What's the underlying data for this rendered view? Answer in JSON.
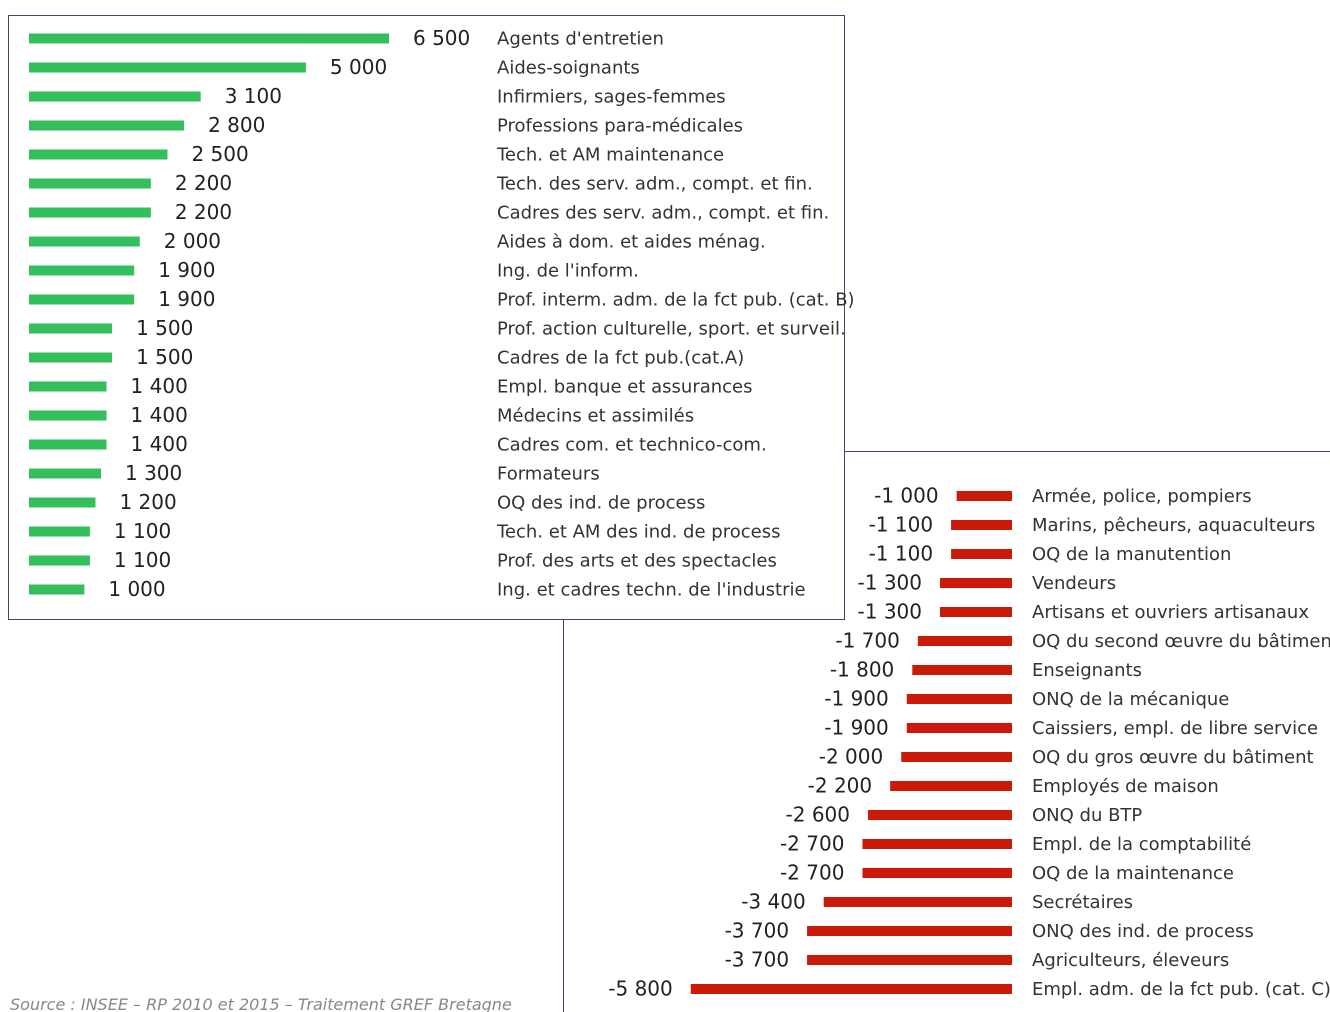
{
  "chart_data": [
    {
      "type": "bar",
      "orientation": "horizontal",
      "color": "#33bf5c",
      "categories": [
        "Agents d'entretien",
        "Aides-soignants",
        "Infirmiers, sages-femmes",
        "Professions para-médicales",
        "Tech. et AM maintenance",
        "Tech. des serv. adm., compt. et fin.",
        "Cadres des serv. adm., compt. et fin.",
        "Aides à dom. et aides ménag.",
        "Ing. de l'inform.",
        "Prof. interm. adm. de la fct pub. (cat. B)",
        "Prof. action culturelle, sport. et surveil.",
        "Cadres de la fct pub.(cat.A)",
        "Empl. banque et assurances",
        "Médecins et assimilés",
        "Cadres com. et technico-com.",
        "Formateurs",
        "OQ des ind. de process",
        "Tech. et AM des ind. de process",
        "Prof. des arts et des spectacles",
        "Ing. et cadres techn. de l'industrie"
      ],
      "values": [
        6500,
        5000,
        3100,
        2800,
        2500,
        2200,
        2200,
        2000,
        1900,
        1900,
        1500,
        1500,
        1400,
        1400,
        1400,
        1300,
        1200,
        1100,
        1100,
        1000
      ],
      "value_labels": [
        "6 500",
        "5 000",
        "3 100",
        "2 800",
        "2 500",
        "2 200",
        "2 200",
        "2 000",
        "1 900",
        "1 900",
        "1 500",
        "1 500",
        "1 400",
        "1 400",
        "1 400",
        "1 300",
        "1 200",
        "1 100",
        "1 100",
        "1 000"
      ]
    },
    {
      "type": "bar",
      "orientation": "horizontal",
      "color": "#cc1a0a",
      "categories": [
        "Armée, police, pompiers",
        "Marins, pêcheurs, aquaculteurs",
        "OQ de la manutention",
        "Vendeurs",
        "Artisans et ouvriers artisanaux",
        "OQ du second œuvre du bâtiment",
        "Enseignants",
        "ONQ de la mécanique",
        "Caissiers, empl. de libre service",
        "OQ du gros œuvre du bâtiment",
        "Employés de maison",
        "ONQ du BTP",
        "Empl. de la comptabilité",
        "OQ de la maintenance",
        "Secrétaires",
        "ONQ des ind. de process",
        "Agriculteurs, éleveurs",
        "Empl. adm. de la fct pub. (cat. C)"
      ],
      "values": [
        -1000,
        -1100,
        -1100,
        -1300,
        -1300,
        -1700,
        -1800,
        -1900,
        -1900,
        -2000,
        -2200,
        -2600,
        -2700,
        -2700,
        -3400,
        -3700,
        -3700,
        -5800
      ],
      "value_labels": [
        "-1 000",
        "-1 100",
        "-1 100",
        "-1 300",
        "-1 300",
        "-1 700",
        "-1 800",
        "-1 900",
        "-1 900",
        "-2 000",
        "-2 200",
        "-2 600",
        "-2 700",
        "-2 700",
        "-3 400",
        "-3 700",
        "-3 700",
        "-5 800"
      ]
    }
  ],
  "source": "Source : INSEE – RP 2010 et 2015 – Traitement GREF Bretagne"
}
